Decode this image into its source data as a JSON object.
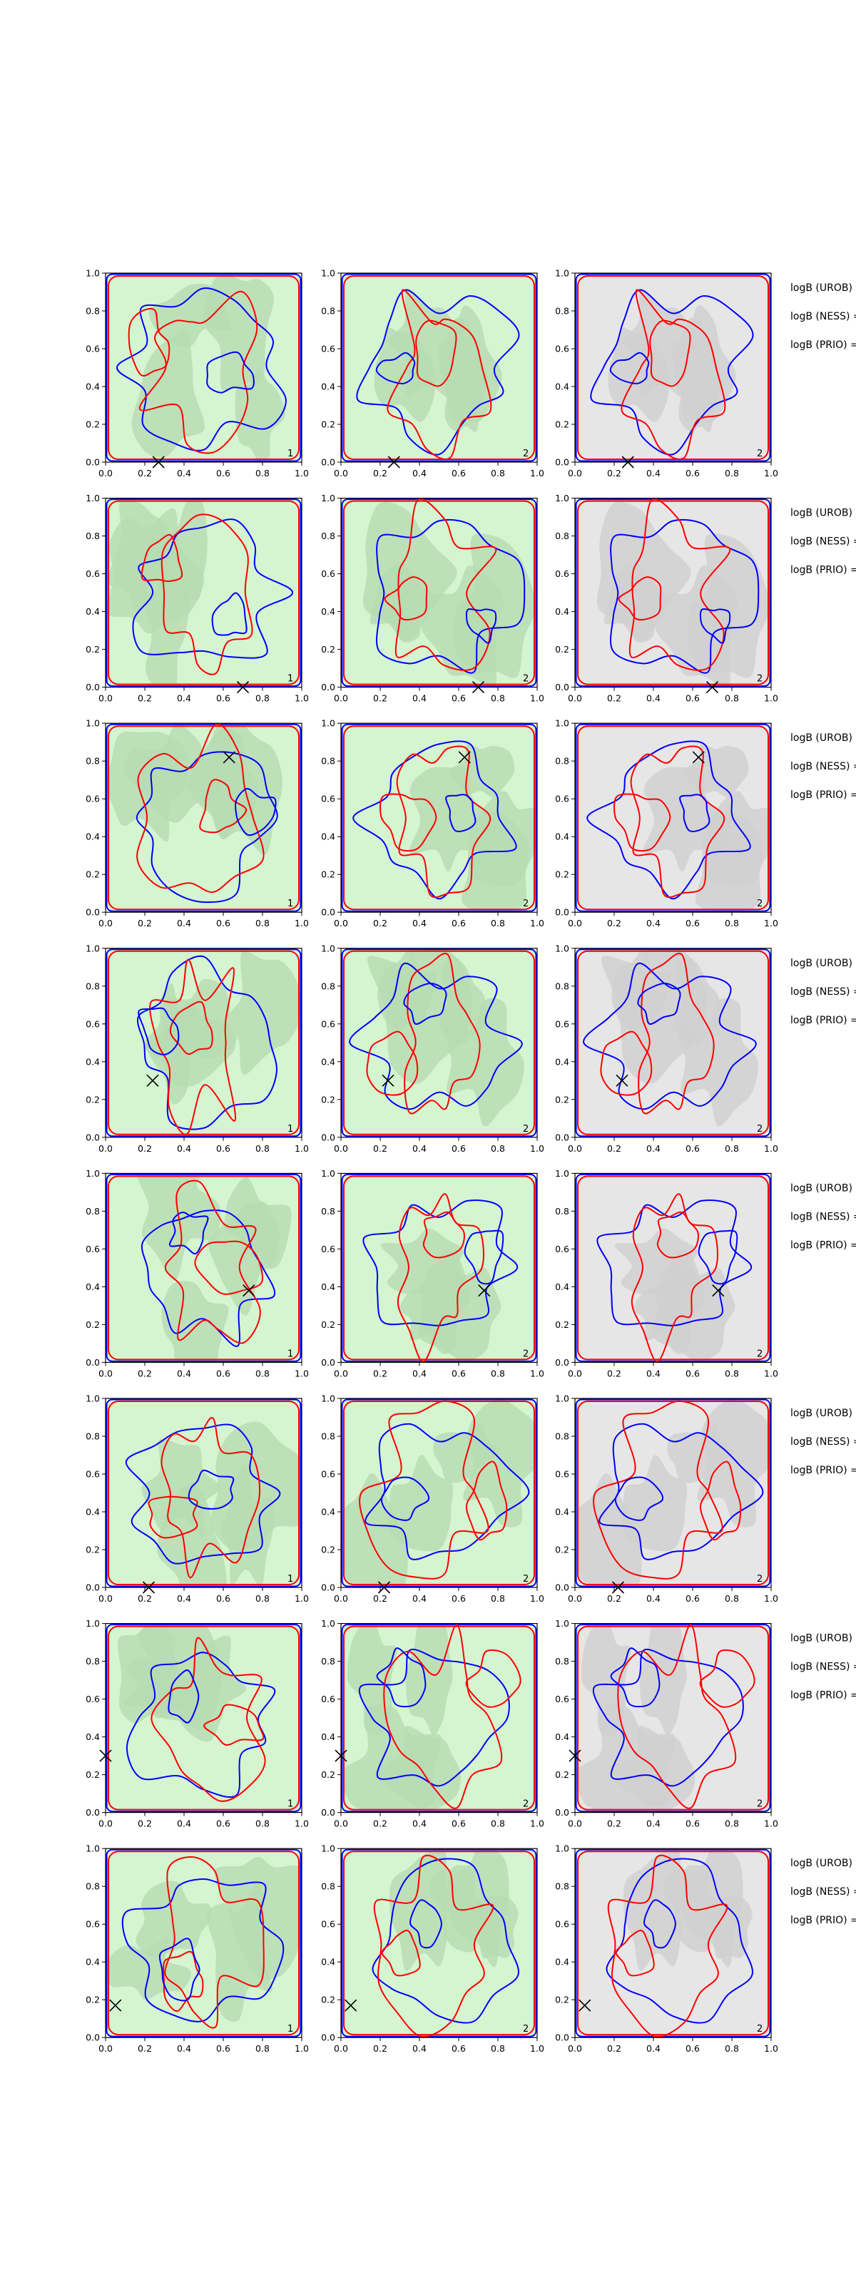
{
  "figure": {
    "row_annotations": [
      "logB (UROB) =",
      "logB (NESS) =",
      "logB (PRIO) ="
    ],
    "colors": {
      "red_contour": "#ff0000",
      "blue_contour": "#0000ff",
      "green_fill_light": "#d4f5d0",
      "green_fill_dark": "#b7dbb2",
      "gray_fill_light": "#e6e6e6",
      "gray_fill_dark": "#cfcfcf",
      "axis": "#000000"
    }
  },
  "chart_data": {
    "type": "contour",
    "layout": "8 rows x 3 columns of panels",
    "xlim": [
      0,
      1
    ],
    "ylim": [
      0,
      1
    ],
    "xticks": [
      "0.0",
      "0.2",
      "0.4",
      "0.6",
      "0.8",
      "1.0"
    ],
    "yticks": [
      "0.0",
      "0.2",
      "0.4",
      "0.6",
      "0.8",
      "1.0"
    ],
    "columns": [
      {
        "background": "green",
        "corner_label": "1"
      },
      {
        "background": "green",
        "corner_label": "2"
      },
      {
        "background": "gray",
        "corner_label": "2"
      }
    ],
    "rows": [
      {
        "marker": [
          0.27,
          0.0
        ],
        "corner_labels": [
          "1",
          "2",
          "2"
        ]
      },
      {
        "marker": [
          0.7,
          0.0
        ],
        "corner_labels": [
          "1",
          "2",
          "2"
        ]
      },
      {
        "marker": [
          0.63,
          0.82
        ],
        "corner_labels": [
          "1",
          "2",
          "2"
        ]
      },
      {
        "marker": [
          0.24,
          0.3
        ],
        "corner_labels": [
          "1",
          "2",
          "2"
        ]
      },
      {
        "marker": [
          0.73,
          0.38
        ],
        "corner_labels": [
          "1",
          "2",
          "2"
        ]
      },
      {
        "marker": [
          0.22,
          0.0
        ],
        "corner_labels": [
          "1",
          "2",
          "2"
        ]
      },
      {
        "marker": [
          0.0,
          0.3
        ],
        "corner_labels": [
          "1",
          "2",
          "2"
        ]
      },
      {
        "marker": [
          0.05,
          0.17
        ],
        "corner_labels": [
          "1",
          "2",
          "2"
        ]
      }
    ]
  }
}
